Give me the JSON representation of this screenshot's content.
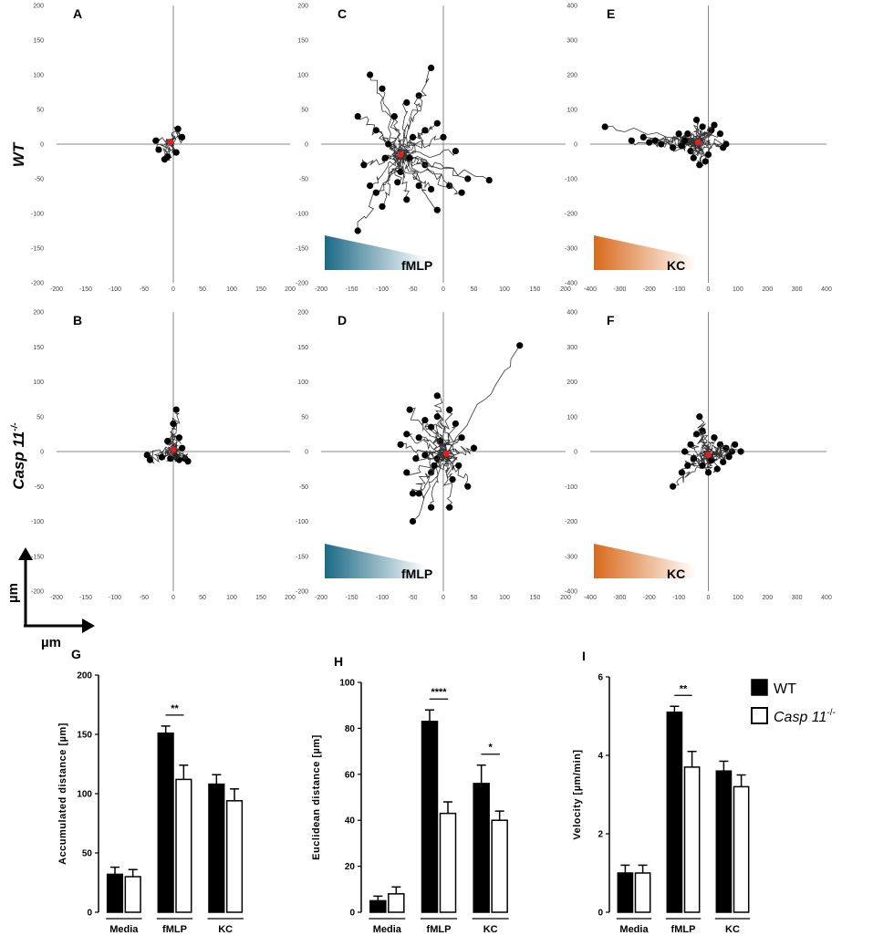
{
  "colors": {
    "fmlp_gradient": "#1b6a86",
    "kc_gradient": "#d9691c",
    "start_dot": "#e02020",
    "track": "#333333",
    "end_dot": "#000000"
  },
  "row_labels": {
    "top": "WT",
    "bottom": "Casp 11",
    "bottom_sup": "-/-"
  },
  "axis_arrow": {
    "y": "µm",
    "x": "µm"
  },
  "chart_data": [
    {
      "type": "scatter",
      "panel": "A",
      "genotype": "WT",
      "stimulus": "Media",
      "xlim": [
        -200,
        200
      ],
      "ylim": [
        -200,
        200
      ],
      "xticks": [
        -200,
        -150,
        -100,
        -50,
        0,
        50,
        100,
        150,
        200
      ],
      "yticks": [
        200,
        150,
        100,
        50,
        0,
        -50,
        -100,
        -150,
        -200
      ],
      "gradient_label": "",
      "start": [
        -5,
        3
      ],
      "track_endpoints": [
        [
          -30,
          5
        ],
        [
          -25,
          -8
        ],
        [
          -10,
          -18
        ],
        [
          8,
          22
        ],
        [
          15,
          10
        ],
        [
          -15,
          -22
        ],
        [
          5,
          -12
        ]
      ]
    },
    {
      "type": "scatter",
      "panel": "B",
      "genotype": "Casp 11-/-",
      "stimulus": "Media",
      "xlim": [
        -200,
        200
      ],
      "ylim": [
        -200,
        200
      ],
      "xticks": [
        -200,
        -150,
        -100,
        -50,
        0,
        50,
        100,
        150,
        200
      ],
      "yticks": [
        200,
        150,
        100,
        50,
        0,
        -50,
        -100,
        -150,
        -200
      ],
      "gradient_label": "",
      "start": [
        0,
        3
      ],
      "track_endpoints": [
        [
          -45,
          -5
        ],
        [
          -40,
          -12
        ],
        [
          -5,
          -10
        ],
        [
          5,
          -8
        ],
        [
          10,
          -12
        ],
        [
          20,
          -10
        ],
        [
          25,
          -14
        ],
        [
          5,
          60
        ],
        [
          0,
          40
        ],
        [
          -10,
          15
        ],
        [
          15,
          5
        ],
        [
          10,
          20
        ],
        [
          -20,
          -8
        ]
      ]
    },
    {
      "type": "scatter",
      "panel": "C",
      "genotype": "WT",
      "stimulus": "fMLP",
      "xlim": [
        -200,
        200
      ],
      "ylim": [
        -200,
        200
      ],
      "xticks": [
        -200,
        -150,
        -100,
        -50,
        0,
        50,
        100,
        150,
        200
      ],
      "yticks": [
        200,
        150,
        100,
        50,
        0,
        -50,
        -100,
        -150,
        -200
      ],
      "gradient_label": "fMLP",
      "start": [
        -70,
        -15
      ],
      "track_endpoints": [
        [
          -140,
          40
        ],
        [
          -120,
          100
        ],
        [
          -100,
          80
        ],
        [
          -110,
          20
        ],
        [
          -90,
          0
        ],
        [
          -130,
          -30
        ],
        [
          -120,
          -60
        ],
        [
          -100,
          -90
        ],
        [
          -140,
          -125
        ],
        [
          -70,
          -40
        ],
        [
          -60,
          -80
        ],
        [
          -40,
          -60
        ],
        [
          -30,
          -30
        ],
        [
          -20,
          -65
        ],
        [
          -10,
          -95
        ],
        [
          10,
          -60
        ],
        [
          30,
          -70
        ],
        [
          40,
          -50
        ],
        [
          75,
          -52
        ],
        [
          20,
          -10
        ],
        [
          0,
          10
        ],
        [
          -10,
          30
        ],
        [
          -30,
          20
        ],
        [
          -50,
          10
        ],
        [
          -40,
          70
        ],
        [
          -20,
          110
        ],
        [
          -60,
          60
        ],
        [
          -80,
          40
        ],
        [
          -95,
          -20
        ],
        [
          -110,
          -70
        ],
        [
          -75,
          -55
        ],
        [
          -55,
          -20
        ]
      ]
    },
    {
      "type": "scatter",
      "panel": "D",
      "genotype": "Casp 11-/-",
      "stimulus": "fMLP",
      "xlim": [
        -200,
        200
      ],
      "ylim": [
        -200,
        200
      ],
      "xticks": [
        -200,
        -150,
        -100,
        -50,
        0,
        50,
        100,
        150,
        200
      ],
      "yticks": [
        200,
        150,
        100,
        50,
        0,
        -50,
        -100,
        -150,
        -200
      ],
      "gradient_label": "fMLP",
      "start": [
        5,
        -3
      ],
      "track_endpoints": [
        [
          125,
          152
        ],
        [
          -55,
          60
        ],
        [
          -60,
          25
        ],
        [
          -40,
          20
        ],
        [
          -30,
          -5
        ],
        [
          -20,
          -30
        ],
        [
          -50,
          -60
        ],
        [
          -40,
          -60
        ],
        [
          -20,
          -80
        ],
        [
          -50,
          -100
        ],
        [
          10,
          -80
        ],
        [
          40,
          -50
        ],
        [
          20,
          40
        ],
        [
          10,
          60
        ],
        [
          -10,
          80
        ],
        [
          -20,
          35
        ],
        [
          -10,
          -10
        ],
        [
          -15,
          -20
        ],
        [
          30,
          20
        ],
        [
          50,
          5
        ],
        [
          -70,
          10
        ],
        [
          -60,
          -30
        ],
        [
          15,
          -40
        ],
        [
          -5,
          15
        ],
        [
          -30,
          45
        ],
        [
          -45,
          -10
        ],
        [
          25,
          -20
        ],
        [
          -10,
          50
        ]
      ]
    },
    {
      "type": "scatter",
      "panel": "E",
      "genotype": "WT",
      "stimulus": "KC",
      "xlim": [
        -400,
        400
      ],
      "ylim": [
        -400,
        400
      ],
      "xticks": [
        -400,
        -300,
        -200,
        -100,
        0,
        100,
        200,
        300,
        400
      ],
      "yticks": [
        400,
        300,
        200,
        100,
        0,
        -100,
        -200,
        -300,
        -400
      ],
      "gradient_label": "KC",
      "start": [
        -35,
        5
      ],
      "track_endpoints": [
        [
          -350,
          50
        ],
        [
          -260,
          10
        ],
        [
          -220,
          20
        ],
        [
          -200,
          5
        ],
        [
          -180,
          10
        ],
        [
          -160,
          0
        ],
        [
          -120,
          -10
        ],
        [
          -100,
          30
        ],
        [
          -90,
          -5
        ],
        [
          -80,
          10
        ],
        [
          -60,
          -20
        ],
        [
          -50,
          -40
        ],
        [
          -30,
          -60
        ],
        [
          -10,
          -50
        ],
        [
          0,
          -30
        ],
        [
          10,
          40
        ],
        [
          20,
          55
        ],
        [
          40,
          30
        ],
        [
          50,
          -10
        ],
        [
          60,
          0
        ],
        [
          -20,
          50
        ],
        [
          -40,
          70
        ],
        [
          -70,
          30
        ]
      ]
    },
    {
      "type": "scatter",
      "panel": "F",
      "genotype": "Casp 11-/-",
      "stimulus": "KC",
      "xlim": [
        -400,
        400
      ],
      "ylim": [
        -400,
        400
      ],
      "xticks": [
        -400,
        -300,
        -200,
        -100,
        0,
        100,
        200,
        300,
        400
      ],
      "yticks": [
        400,
        300,
        200,
        100,
        0,
        -100,
        -200,
        -300,
        -400
      ],
      "gradient_label": "KC",
      "start": [
        0,
        -10
      ],
      "track_endpoints": [
        [
          -120,
          -100
        ],
        [
          -90,
          -60
        ],
        [
          -70,
          -40
        ],
        [
          -80,
          0
        ],
        [
          -60,
          20
        ],
        [
          -40,
          50
        ],
        [
          -20,
          60
        ],
        [
          -30,
          100
        ],
        [
          20,
          40
        ],
        [
          40,
          20
        ],
        [
          60,
          10
        ],
        [
          80,
          0
        ],
        [
          110,
          0
        ],
        [
          50,
          -30
        ],
        [
          30,
          -50
        ],
        [
          0,
          -60
        ],
        [
          -20,
          -40
        ],
        [
          90,
          20
        ],
        [
          10,
          -25
        ],
        [
          -50,
          -20
        ],
        [
          70,
          -15
        ]
      ]
    },
    {
      "type": "bar",
      "panel": "G",
      "ylabel": "Accumulated distance [µm]",
      "ylim": [
        0,
        200
      ],
      "yticks": [
        0,
        50,
        100,
        150,
        200
      ],
      "categories": [
        "Media",
        "fMLP",
        "KC"
      ],
      "series": [
        {
          "name": "WT",
          "values": [
            32,
            151,
            108
          ],
          "errors": [
            6,
            6,
            8
          ]
        },
        {
          "name": "Casp 11-/-",
          "values": [
            30,
            112,
            94
          ],
          "errors": [
            6,
            12,
            10
          ]
        }
      ],
      "significance": [
        {
          "category": "fMLP",
          "label": "**"
        }
      ]
    },
    {
      "type": "bar",
      "panel": "H",
      "ylabel": "Euclidean distance [µm]",
      "ylim": [
        0,
        100
      ],
      "yticks": [
        0,
        20,
        40,
        60,
        80,
        100
      ],
      "categories": [
        "Media",
        "fMLP",
        "KC"
      ],
      "series": [
        {
          "name": "WT",
          "values": [
            5,
            83,
            56
          ],
          "errors": [
            2,
            5,
            8
          ]
        },
        {
          "name": "Casp 11-/-",
          "values": [
            8,
            43,
            40
          ],
          "errors": [
            3,
            5,
            4
          ]
        }
      ],
      "significance": [
        {
          "category": "fMLP",
          "label": "****"
        },
        {
          "category": "KC",
          "label": "*"
        }
      ]
    },
    {
      "type": "bar",
      "panel": "I",
      "ylabel": "Velocity [µm/min]",
      "ylim": [
        0,
        6
      ],
      "yticks": [
        0,
        2,
        4,
        6
      ],
      "categories": [
        "Media",
        "fMLP",
        "KC"
      ],
      "series": [
        {
          "name": "WT",
          "values": [
            1.0,
            5.1,
            3.6
          ],
          "errors": [
            0.2,
            0.15,
            0.25
          ]
        },
        {
          "name": "Casp 11-/-",
          "values": [
            1.0,
            3.7,
            3.2
          ],
          "errors": [
            0.2,
            0.4,
            0.3
          ]
        }
      ],
      "significance": [
        {
          "category": "fMLP",
          "label": "**"
        }
      ]
    }
  ],
  "legend": {
    "wt": "WT",
    "ko": "Casp 11",
    "ko_sup": "-/-"
  }
}
